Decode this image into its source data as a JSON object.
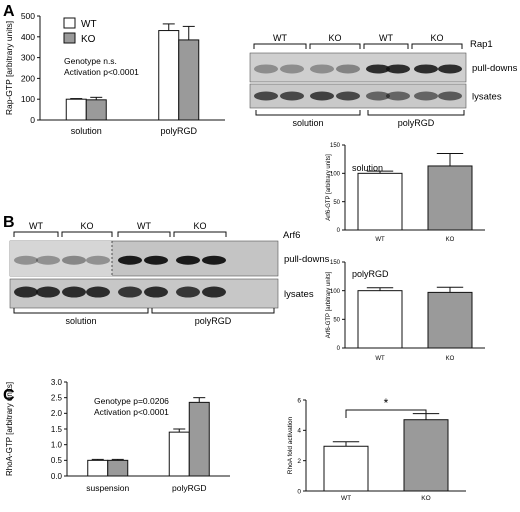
{
  "panels": {
    "A": "A",
    "B": "B",
    "C": "C"
  },
  "colors": {
    "wt": "#ffffff",
    "ko": "#9a9a9a",
    "axis": "#111111"
  },
  "blots": {
    "rap1": {
      "groups": [
        "WT",
        "KO",
        "WT",
        "KO"
      ],
      "protein": "Rap1",
      "row_labels": [
        "pull-downs",
        "lysates"
      ],
      "conditions": [
        "solution",
        "polyRGD"
      ]
    },
    "arf6": {
      "groups": [
        "WT",
        "KO",
        "WT",
        "KO"
      ],
      "protein": "Arf6",
      "row_labels": [
        "pull-downs",
        "lysates"
      ],
      "conditions": [
        "solution",
        "polyRGD"
      ]
    }
  },
  "chart_data": [
    {
      "id": "rap-gtp",
      "type": "bar",
      "categories": [
        "solution",
        "polyRGD"
      ],
      "series": [
        {
          "name": "WT",
          "values": [
            100,
            430
          ],
          "errors": [
            3,
            32
          ]
        },
        {
          "name": "KO",
          "values": [
            97,
            385
          ],
          "errors": [
            12,
            65
          ]
        }
      ],
      "ylabel": "Rap-GTP [arbitrary units]",
      "ylim": [
        0,
        500
      ],
      "yticks": [
        "0",
        "100",
        "200",
        "300",
        "400",
        "500"
      ],
      "legend": "top-left",
      "annotations": [
        "Genotype n.s.",
        "Activation p<0.0001"
      ]
    },
    {
      "id": "arf6-solution",
      "type": "bar",
      "categories": [
        "WT",
        "KO"
      ],
      "series": [
        {
          "values": [
            100,
            113
          ],
          "errors": [
            4,
            22
          ]
        }
      ],
      "title": "solution",
      "ylabel": "Arf6-GTP [arbitrary units]",
      "ylim": [
        0,
        150
      ],
      "yticks": [
        "0",
        "50",
        "100",
        "150"
      ]
    },
    {
      "id": "arf6-polyrgd",
      "type": "bar",
      "categories": [
        "WT",
        "KO"
      ],
      "series": [
        {
          "values": [
            100,
            97
          ],
          "errors": [
            5,
            9
          ]
        }
      ],
      "title": "polyRGD",
      "ylabel": "Arf6-GTP [arbitrary units]",
      "ylim": [
        0,
        150
      ],
      "yticks": [
        "0",
        "50",
        "100",
        "150"
      ]
    },
    {
      "id": "rhoa-gtp",
      "type": "bar",
      "categories": [
        "suspension",
        "polyRGD"
      ],
      "series": [
        {
          "name": "WT",
          "values": [
            0.5,
            1.4
          ],
          "errors": [
            0.03,
            0.1
          ]
        },
        {
          "name": "KO",
          "values": [
            0.5,
            2.35
          ],
          "errors": [
            0.03,
            0.15
          ]
        }
      ],
      "ylabel": "RhoA-GTP [arbitrary units]",
      "ylim": [
        0,
        3.0
      ],
      "yticks": [
        "0.0",
        "0.5",
        "1.0",
        "1.5",
        "2.0",
        "2.5",
        "3.0"
      ],
      "annotations": [
        "Genotype p=0.0206",
        "Activation p<0.0001"
      ]
    },
    {
      "id": "rhoa-fold",
      "type": "bar",
      "categories": [
        "WT",
        "KO"
      ],
      "series": [
        {
          "values": [
            2.95,
            4.7
          ],
          "errors": [
            0.3,
            0.4
          ]
        }
      ],
      "ylabel": "RhoA fold activation",
      "ylim": [
        0,
        6
      ],
      "yticks": [
        "0",
        "2",
        "4",
        "6"
      ],
      "annotations": [
        "*"
      ]
    }
  ]
}
